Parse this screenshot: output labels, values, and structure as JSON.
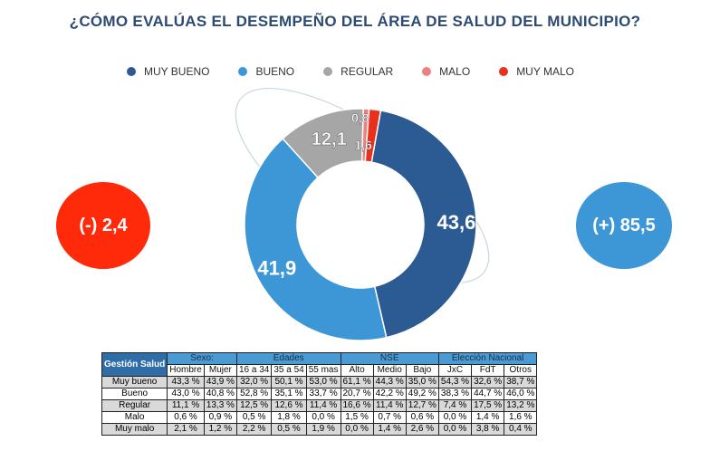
{
  "title": "¿CÓMO EVALÚAS EL DESEMPEÑO DEL ÁREA DE SALUD DEL MUNICIPIO?",
  "chart_data": {
    "type": "pie",
    "variant": "donut",
    "title": "¿CÓMO EVALÚAS EL DESEMPEÑO DEL ÁREA DE SALUD DEL MUNICIPIO?",
    "legend_position": "top",
    "categories": [
      "MUY BUENO",
      "BUENO",
      "REGULAR",
      "MALO",
      "MUY MALO"
    ],
    "values": [
      43.6,
      41.9,
      12.1,
      0.8,
      1.6
    ],
    "value_labels": [
      "43,6",
      "41,9",
      "12,1",
      "0,8",
      "1,6"
    ],
    "colors": [
      "#2c5a92",
      "#3d97d6",
      "#a6a6a6",
      "#f08080",
      "#e8301d"
    ]
  },
  "bubbles": {
    "negative": {
      "label": "(-) 2,4",
      "color": "#ff2a0a"
    },
    "positive": {
      "label": "(+) 85,5",
      "color": "#3d97d6"
    }
  },
  "table": {
    "corner": "Gestión Salud",
    "groups": [
      {
        "label": "Sexo:",
        "span": 2
      },
      {
        "label": "Edades",
        "span": 3
      },
      {
        "label": "NSE",
        "span": 3
      },
      {
        "label": "Elección Nacional",
        "span": 3
      }
    ],
    "columns": [
      "Hombre",
      "Mujer",
      "16 a 34",
      "35 a 54",
      "55 mas",
      "Alto",
      "Medio",
      "Bajo",
      "JxC",
      "FdT",
      "Otros"
    ],
    "rows": [
      {
        "label": "Muy bueno",
        "cells": [
          "43,3 %",
          "43,9 %",
          "32,0 %",
          "50,1 %",
          "53,0 %",
          "61,1 %",
          "44,3 %",
          "35,0 %",
          "54,3 %",
          "32,6 %",
          "38,7 %"
        ]
      },
      {
        "label": "Bueno",
        "cells": [
          "43,0 %",
          "40,8 %",
          "52,8 %",
          "35,1 %",
          "33,7 %",
          "20,7 %",
          "42,2 %",
          "49,2 %",
          "38,3 %",
          "44,7 %",
          "46,0 %"
        ]
      },
      {
        "label": "Regular",
        "cells": [
          "11,1 %",
          "13,3 %",
          "12,5 %",
          "12,6 %",
          "11,4 %",
          "16,6 %",
          "11,4 %",
          "12,7 %",
          "7,4 %",
          "17,5 %",
          "13,2 %"
        ]
      },
      {
        "label": "Malo",
        "cells": [
          "0,6 %",
          "0,9 %",
          "0,5 %",
          "1,8 %",
          "0,0 %",
          "1,5 %",
          "0,7 %",
          "0,6 %",
          "0,0 %",
          "1,4 %",
          "1,6 %"
        ]
      },
      {
        "label": "Muy malo",
        "cells": [
          "2,1 %",
          "1,2 %",
          "2,2 %",
          "0,5 %",
          "1,9 %",
          "0,0 %",
          "1,4 %",
          "2,6 %",
          "0,0 %",
          "3,8 %",
          "0,4 %"
        ]
      }
    ]
  }
}
